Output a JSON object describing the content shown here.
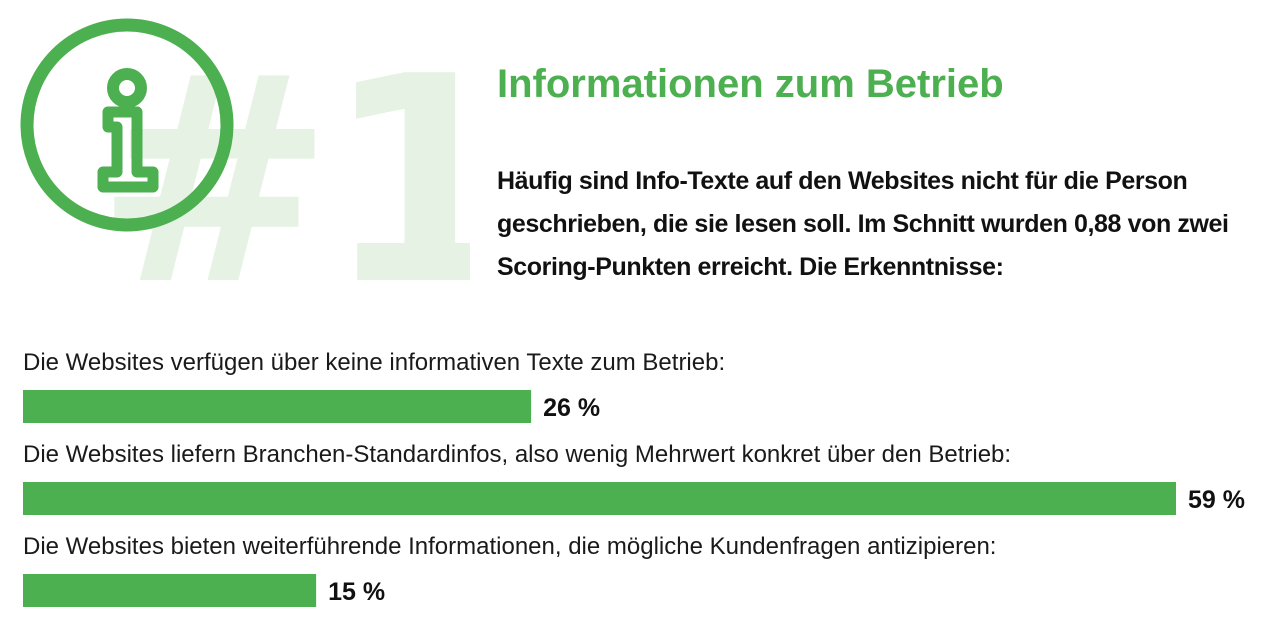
{
  "header": {
    "number_badge": "#1",
    "title": "Informationen zum Betrieb",
    "intro": "Häufig sind Info-Texte auf den Websites nicht für die Person geschrieben, die sie lesen soll. Im Schnitt wurden 0,88 von zwei Scoring-Punkten erreicht. Die Erkenntnisse:"
  },
  "icons": {
    "hero": "info-icon"
  },
  "colors": {
    "accent": "#4caf50",
    "accent_light": "#e6f2e4",
    "text": "#111111"
  },
  "chart_data": {
    "type": "bar",
    "orientation": "horizontal",
    "categories": [
      "Die Websites verfügen über keine informativen Texte zum Betrieb:",
      "Die Websites liefern Branchen-Standardinfos, also wenig Mehrwert konkret über den Betrieb:",
      "Die Websites bieten weiterführende Informationen, die mögliche Kundenfragen antizipieren:"
    ],
    "values": [
      26,
      59,
      15
    ],
    "value_labels": [
      "26 %",
      "59 %",
      "15 %"
    ],
    "unit": "%",
    "xlim": [
      0,
      59
    ],
    "grid": false
  }
}
